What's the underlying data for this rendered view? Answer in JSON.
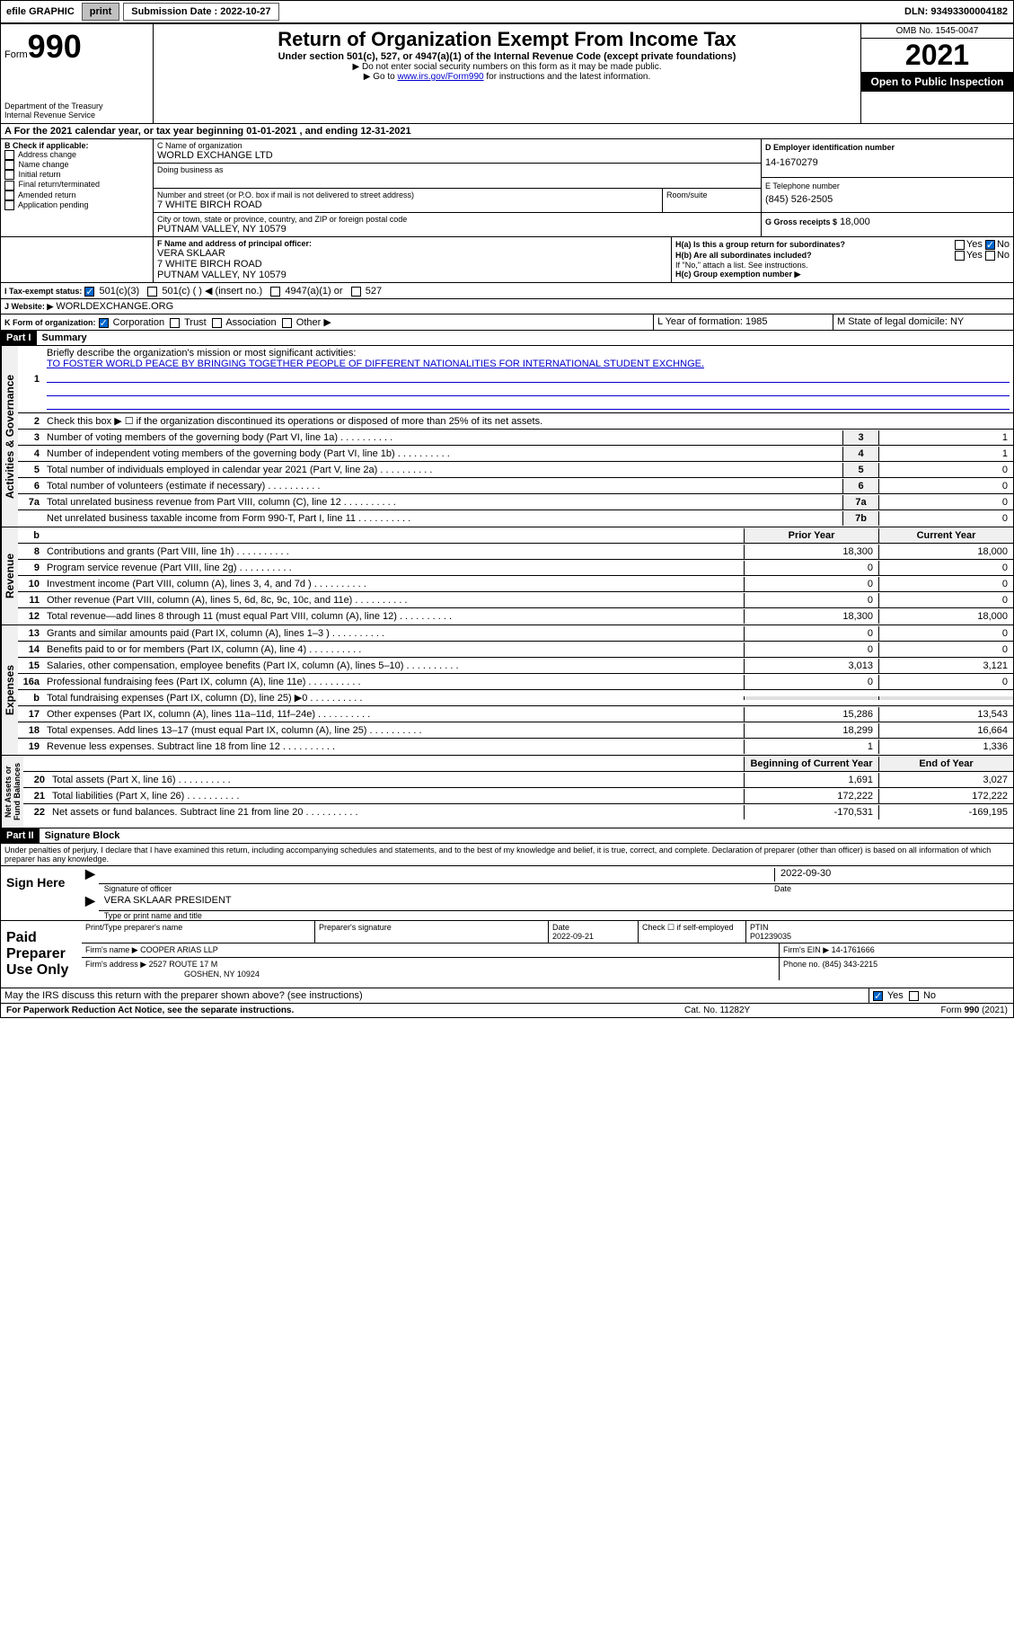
{
  "topbar": {
    "efile_label": "efile GRAPHIC",
    "print_btn": "print",
    "submission_label": "Submission Date : 2022-10-27",
    "dln_label": "DLN: 93493300004182"
  },
  "header": {
    "form_prefix": "Form",
    "form_number": "990",
    "dept": "Department of the Treasury",
    "irs": "Internal Revenue Service",
    "title": "Return of Organization Exempt From Income Tax",
    "subtitle": "Under section 501(c), 527, or 4947(a)(1) of the Internal Revenue Code (except private foundations)",
    "note1": "▶ Do not enter social security numbers on this form as it may be made public.",
    "note2_prefix": "▶ Go to ",
    "note2_link": "www.irs.gov/Form990",
    "note2_suffix": " for instructions and the latest information.",
    "omb": "OMB No. 1545-0047",
    "year": "2021",
    "inspection": "Open to Public Inspection"
  },
  "period": {
    "line": "A For the 2021 calendar year, or tax year beginning 01-01-2021   , and ending 12-31-2021"
  },
  "boxB": {
    "label": "B Check if applicable:",
    "opts": [
      "Address change",
      "Name change",
      "Initial return",
      "Final return/terminated",
      "Amended return",
      "Application pending"
    ]
  },
  "boxC": {
    "name_label": "C Name of organization",
    "name": "WORLD EXCHANGE LTD",
    "dba_label": "Doing business as",
    "dba": "",
    "street_label": "Number and street (or P.O. box if mail is not delivered to street address)",
    "room_label": "Room/suite",
    "street": "7 WHITE BIRCH ROAD",
    "city_label": "City or town, state or province, country, and ZIP or foreign postal code",
    "city": "PUTNAM VALLEY, NY  10579"
  },
  "boxD": {
    "label": "D Employer identification number",
    "value": "14-1670279"
  },
  "boxE": {
    "label": "E Telephone number",
    "value": "(845) 526-2505"
  },
  "boxF": {
    "label": "F Name and address of principal officer:",
    "name": "VERA SKLAAR",
    "street": "7 WHITE BIRCH ROAD",
    "city": "PUTNAM VALLEY, NY  10579"
  },
  "boxG": {
    "label": "G Gross receipts $",
    "value": "18,000"
  },
  "boxH": {
    "a_label": "H(a)  Is this a group return for subordinates?",
    "b_label": "H(b)  Are all subordinates included?",
    "b_note": "If \"No,\" attach a list. See instructions.",
    "c_label": "H(c)  Group exemption number ▶"
  },
  "boxI": {
    "label": "I    Tax-exempt status:",
    "opts": [
      "501(c)(3)",
      "501(c) (   ) ◀ (insert no.)",
      "4947(a)(1) or",
      "527"
    ]
  },
  "boxJ": {
    "label": "J   Website: ▶",
    "value": "WORLDEXCHANGE.ORG"
  },
  "boxK": {
    "label": "K Form of organization:",
    "opts": [
      "Corporation",
      "Trust",
      "Association",
      "Other ▶"
    ]
  },
  "boxL": {
    "label": "L Year of formation: 1985"
  },
  "boxM": {
    "label": "M State of legal domicile: NY"
  },
  "part1": {
    "header": "Part I",
    "title": "Summary",
    "line1_label": "Briefly describe the organization's mission or most significant activities:",
    "line1_text": "TO FOSTER WORLD PEACE BY BRINGING TOGETHER PEOPLE OF DIFFERENT NATIONALITIES FOR INTERNATIONAL STUDENT EXCHNGE.",
    "line2_label": "Check this box ▶ ☐  if the organization discontinued its operations or disposed of more than 25% of its net assets.",
    "prior_header": "Prior Year",
    "current_header": "Current Year",
    "boy_header": "Beginning of Current Year",
    "eoy_header": "End of Year",
    "lines_gov": [
      {
        "n": "3",
        "t": "Number of voting members of the governing body (Part VI, line 1a)",
        "box": "3",
        "v": "1"
      },
      {
        "n": "4",
        "t": "Number of independent voting members of the governing body (Part VI, line 1b)",
        "box": "4",
        "v": "1"
      },
      {
        "n": "5",
        "t": "Total number of individuals employed in calendar year 2021 (Part V, line 2a)",
        "box": "5",
        "v": "0"
      },
      {
        "n": "6",
        "t": "Total number of volunteers (estimate if necessary)",
        "box": "6",
        "v": "0"
      },
      {
        "n": "7a",
        "t": "Total unrelated business revenue from Part VIII, column (C), line 12",
        "box": "7a",
        "v": "0"
      },
      {
        "n": "",
        "t": "Net unrelated business taxable income from Form 990-T, Part I, line 11",
        "box": "7b",
        "v": "0"
      }
    ],
    "lines_rev": [
      {
        "n": "8",
        "t": "Contributions and grants (Part VIII, line 1h)",
        "py": "18,300",
        "cy": "18,000"
      },
      {
        "n": "9",
        "t": "Program service revenue (Part VIII, line 2g)",
        "py": "0",
        "cy": "0"
      },
      {
        "n": "10",
        "t": "Investment income (Part VIII, column (A), lines 3, 4, and 7d )",
        "py": "0",
        "cy": "0"
      },
      {
        "n": "11",
        "t": "Other revenue (Part VIII, column (A), lines 5, 6d, 8c, 9c, 10c, and 11e)",
        "py": "0",
        "cy": "0"
      },
      {
        "n": "12",
        "t": "Total revenue—add lines 8 through 11 (must equal Part VIII, column (A), line 12)",
        "py": "18,300",
        "cy": "18,000"
      }
    ],
    "lines_exp": [
      {
        "n": "13",
        "t": "Grants and similar amounts paid (Part IX, column (A), lines 1–3 )",
        "py": "0",
        "cy": "0"
      },
      {
        "n": "14",
        "t": "Benefits paid to or for members (Part IX, column (A), line 4)",
        "py": "0",
        "cy": "0"
      },
      {
        "n": "15",
        "t": "Salaries, other compensation, employee benefits (Part IX, column (A), lines 5–10)",
        "py": "3,013",
        "cy": "3,121"
      },
      {
        "n": "16a",
        "t": "Professional fundraising fees (Part IX, column (A), line 11e)",
        "py": "0",
        "cy": "0"
      },
      {
        "n": "b",
        "t": "Total fundraising expenses (Part IX, column (D), line 25) ▶0",
        "py": "",
        "cy": ""
      },
      {
        "n": "17",
        "t": "Other expenses (Part IX, column (A), lines 11a–11d, 11f–24e)",
        "py": "15,286",
        "cy": "13,543"
      },
      {
        "n": "18",
        "t": "Total expenses. Add lines 13–17 (must equal Part IX, column (A), line 25)",
        "py": "18,299",
        "cy": "16,664"
      },
      {
        "n": "19",
        "t": "Revenue less expenses. Subtract line 18 from line 12",
        "py": "1",
        "cy": "1,336"
      }
    ],
    "lines_net": [
      {
        "n": "20",
        "t": "Total assets (Part X, line 16)",
        "py": "1,691",
        "cy": "3,027"
      },
      {
        "n": "21",
        "t": "Total liabilities (Part X, line 26)",
        "py": "172,222",
        "cy": "172,222"
      },
      {
        "n": "22",
        "t": "Net assets or fund balances. Subtract line 21 from line 20",
        "py": "-170,531",
        "cy": "-169,195"
      }
    ]
  },
  "part2": {
    "header": "Part II",
    "title": "Signature Block",
    "declaration": "Under penalties of perjury, I declare that I have examined this return, including accompanying schedules and statements, and to the best of my knowledge and belief, it is true, correct, and complete. Declaration of preparer (other than officer) is based on all information of which preparer has any knowledge.",
    "sign_here": "Sign Here",
    "sig_officer": "Signature of officer",
    "sig_date": "2022-09-30",
    "date_label": "Date",
    "officer_name": "VERA SKLAAR  PRESIDENT",
    "officer_name_label": "Type or print name and title",
    "paid": "Paid Preparer Use Only",
    "prep_name_label": "Print/Type preparer's name",
    "prep_sig_label": "Preparer's signature",
    "prep_date_label": "Date",
    "prep_date": "2022-09-21",
    "self_emp": "Check ☐ if self-employed",
    "ptin_label": "PTIN",
    "ptin": "P01239035",
    "firm_name_label": "Firm's name     ▶",
    "firm_name": "COOPER ARIAS LLP",
    "firm_ein_label": "Firm's EIN ▶",
    "firm_ein": "14-1761666",
    "firm_addr_label": "Firm's address ▶",
    "firm_addr1": "2527 ROUTE 17 M",
    "firm_addr2": "GOSHEN, NY  10924",
    "firm_phone_label": "Phone no.",
    "firm_phone": "(845) 343-2215",
    "discuss": "May the IRS discuss this return with the preparer shown above? (see instructions)",
    "footer_left": "For Paperwork Reduction Act Notice, see the separate instructions.",
    "footer_mid": "Cat. No. 11282Y",
    "footer_right": "Form 990 (2021)"
  }
}
